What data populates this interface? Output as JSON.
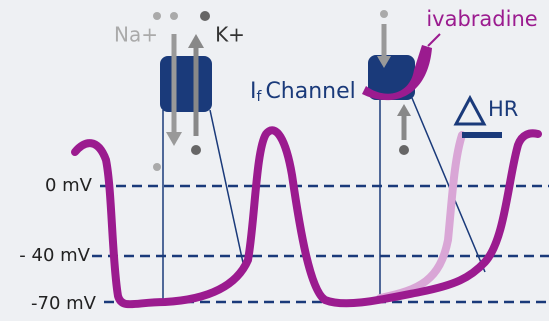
{
  "labels": {
    "na": "Na+",
    "k": "K+",
    "channel_i": "I",
    "channel_sub": "f",
    "channel_rest": "Channel",
    "drug": "ivabradine",
    "hr": "HR"
  },
  "levels": [
    "0 mV",
    "- 40 mV",
    "-70 mV"
  ]
}
